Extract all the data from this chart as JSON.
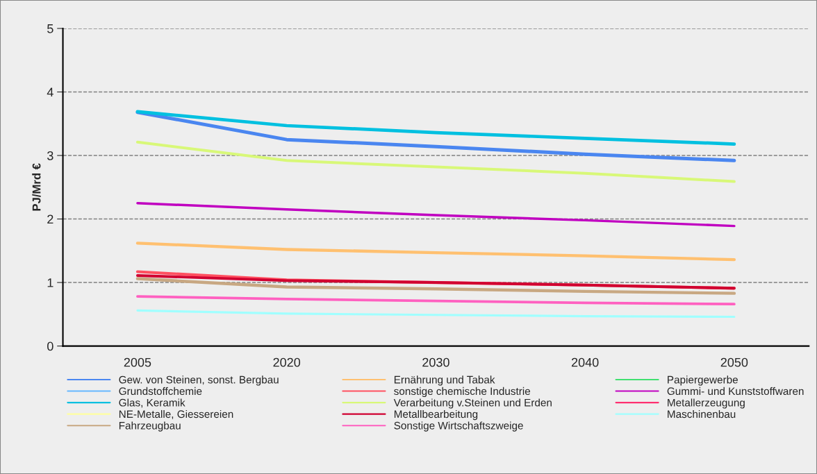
{
  "chart_data": {
    "type": "line",
    "ylabel": "PJ/Mrd €",
    "categories": [
      "2005",
      "2020",
      "2030",
      "2040",
      "2050"
    ],
    "ylim": [
      0,
      5
    ],
    "yticks": [
      0,
      1,
      2,
      3,
      4,
      5
    ],
    "grid": "y",
    "legend": "bottom",
    "line_style": "solid",
    "marker": "none",
    "series": [
      {
        "name": "Gew. von Steinen, sonst. Bergbau",
        "color": "#4a86f0",
        "values": [
          3.68,
          3.25,
          3.14,
          3.02,
          2.92
        ]
      },
      {
        "name": "Grundstoffchemie",
        "color": "#66b8ff",
        "values": [
          null,
          null,
          null,
          null,
          null
        ]
      },
      {
        "name": "Glas, Keramik",
        "color": "#00c0e0",
        "values": [
          3.69,
          3.47,
          3.36,
          3.27,
          3.18
        ]
      },
      {
        "name": "NE-Metalle, Giessereien",
        "color": "#ffffa0",
        "values": [
          null,
          null,
          null,
          null,
          null
        ]
      },
      {
        "name": "Fahrzeugbau",
        "color": "#c8a882",
        "values": [
          1.06,
          0.93,
          0.9,
          0.86,
          0.83
        ]
      },
      {
        "name": "Ernährung und Tabak",
        "color": "#ffc070",
        "values": [
          1.62,
          1.52,
          1.47,
          1.42,
          1.36
        ]
      },
      {
        "name": "sonstige chemische Industrie",
        "color": "#ff5060",
        "values": [
          1.17,
          1.04,
          1.0,
          0.96,
          0.91
        ]
      },
      {
        "name": "Verarbeitung v.Steinen und Erden",
        "color": "#d8f878",
        "values": [
          3.21,
          2.92,
          2.82,
          2.72,
          2.59
        ]
      },
      {
        "name": "Metallbearbeitung",
        "color": "#d00030",
        "values": [
          1.11,
          1.03,
          1.0,
          0.96,
          0.91
        ]
      },
      {
        "name": "Sonstige Wirtschaftszweige",
        "color": "#ff60c0",
        "values": [
          0.78,
          0.74,
          0.71,
          0.68,
          0.66
        ]
      },
      {
        "name": "Papiergewerbe",
        "color": "#40e070",
        "values": [
          null,
          null,
          null,
          null,
          null
        ]
      },
      {
        "name": "Gummi- und Kunststoffwaren",
        "color": "#c000c0",
        "values": [
          2.25,
          2.15,
          2.06,
          1.98,
          1.89
        ]
      },
      {
        "name": "Metallerzeugung",
        "color": "#ff3070",
        "values": [
          null,
          null,
          null,
          null,
          null
        ]
      },
      {
        "name": "Maschinenbau",
        "color": "#a0ffff",
        "values": [
          0.56,
          0.51,
          0.49,
          0.47,
          0.46
        ]
      }
    ]
  }
}
